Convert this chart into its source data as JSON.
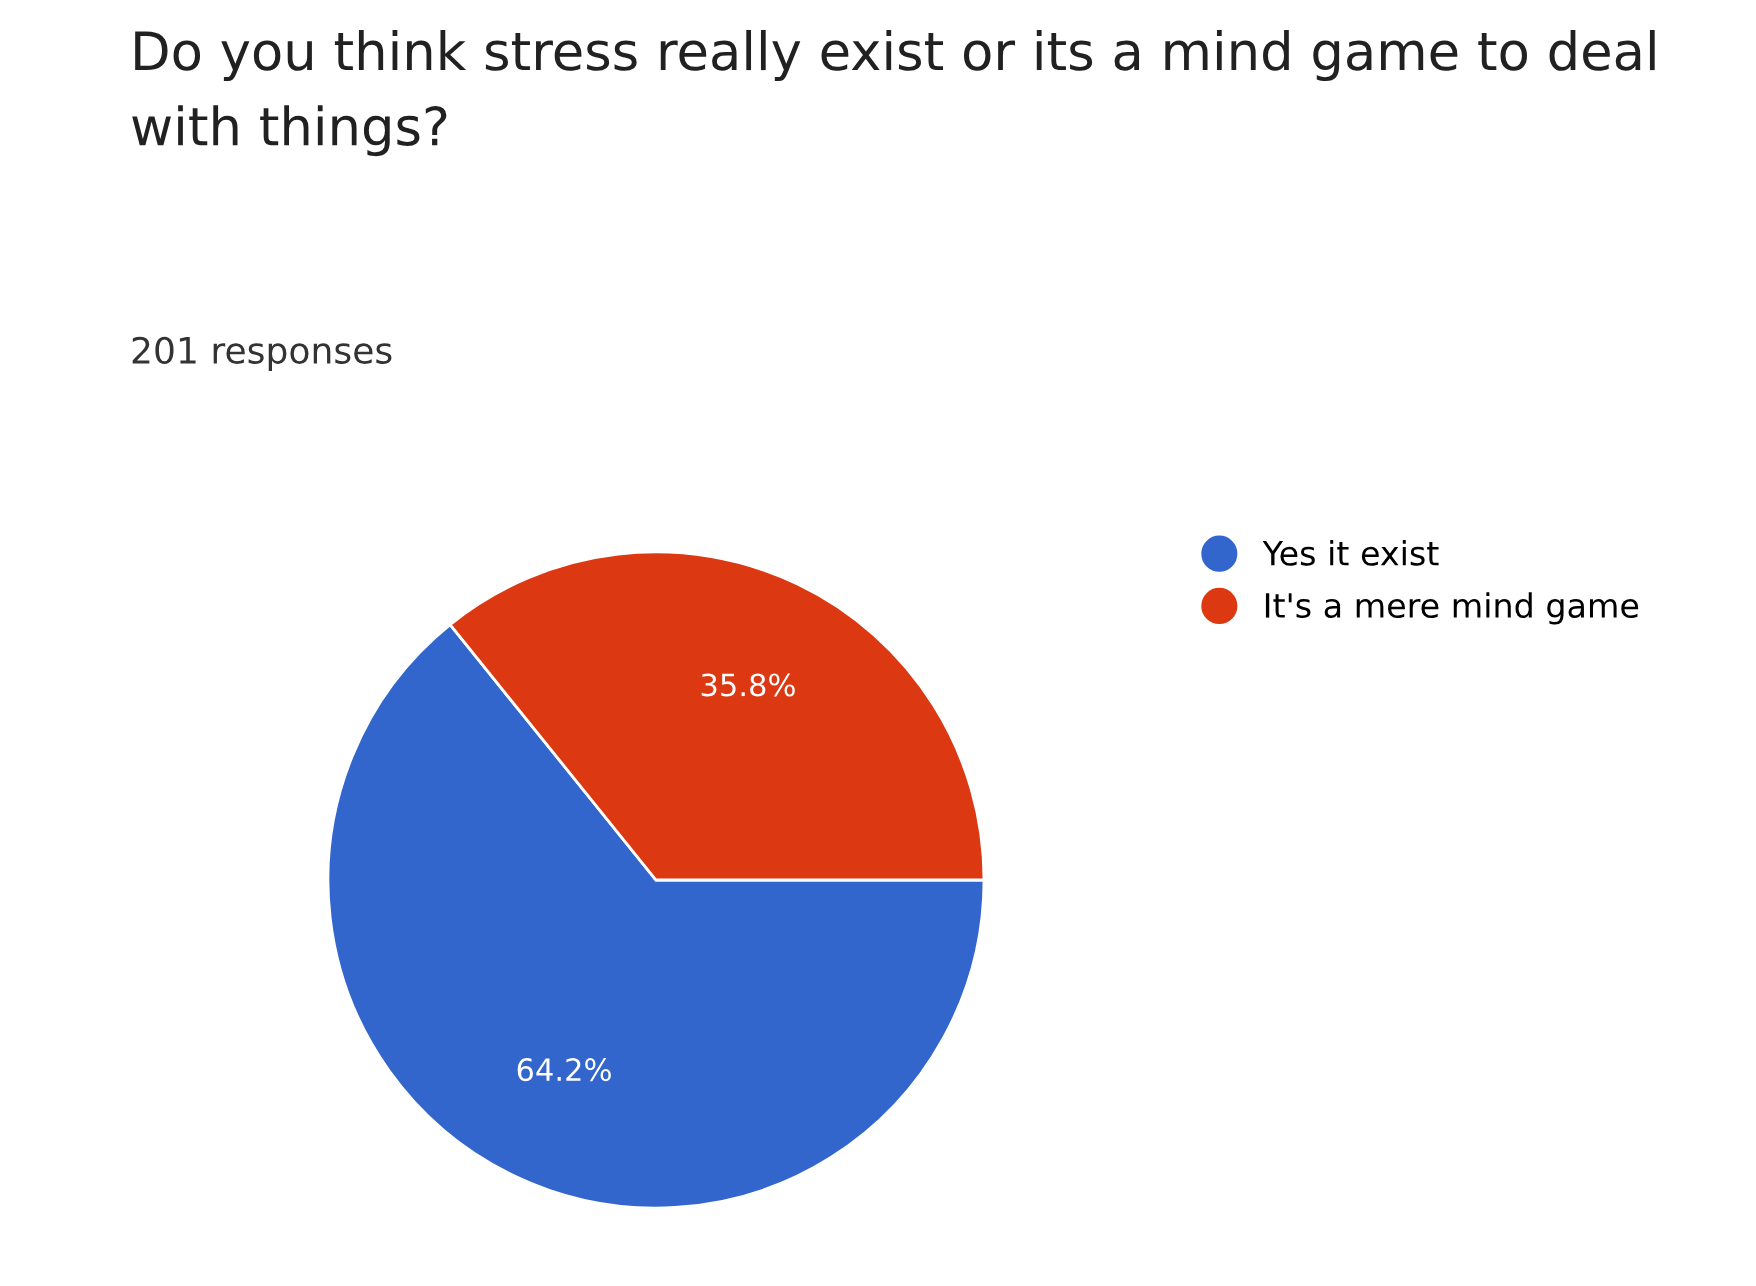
{
  "chart_data": {
    "type": "pie",
    "title": "Do you think stress really exist or its a mind game to deal with things?",
    "subtitle": "201 responses",
    "categories": [
      "Yes it exist",
      "It's a mere mind game"
    ],
    "values": [
      64.2,
      35.8
    ],
    "colors": [
      "#3366cc",
      "#dc3912"
    ],
    "value_labels": [
      "64.2%",
      "35.8%"
    ],
    "legend": "right"
  }
}
